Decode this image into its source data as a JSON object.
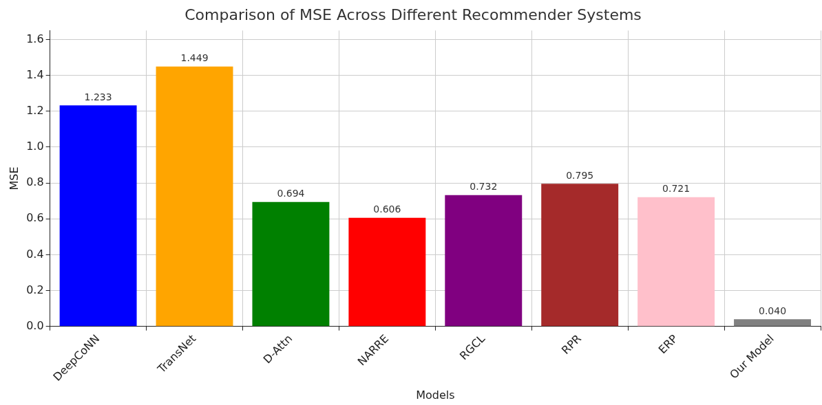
{
  "chart_data": {
    "type": "bar",
    "title": "Comparison of MSE Across Different Recommender Systems",
    "xlabel": "Models",
    "ylabel": "MSE",
    "categories": [
      "DeepCoNN",
      "TransNet",
      "D-Attn",
      "NARRE",
      "RGCL",
      "RPR",
      "ERP",
      "Our Model"
    ],
    "values": [
      1.233,
      1.449,
      0.694,
      0.606,
      0.732,
      0.795,
      0.721,
      0.04
    ],
    "value_labels": [
      "1.233",
      "1.449",
      "0.694",
      "0.606",
      "0.732",
      "0.795",
      "0.721",
      "0.040"
    ],
    "colors": [
      "#0000ff",
      "#ffa500",
      "#008000",
      "#ff0000",
      "#800080",
      "#a52a2a",
      "#ffc0cb",
      "#808080"
    ],
    "ylim": [
      0,
      1.65
    ],
    "yticks": [
      {
        "value": 0,
        "label": "0.0"
      },
      {
        "value": 0.2,
        "label": "0.2"
      },
      {
        "value": 0.4,
        "label": "0.4"
      },
      {
        "value": 0.6,
        "label": "0.6"
      },
      {
        "value": 0.8,
        "label": "0.8"
      },
      {
        "value": 1,
        "label": "1.0"
      },
      {
        "value": 1.2,
        "label": "1.2"
      },
      {
        "value": 1.4,
        "label": "1.4"
      },
      {
        "value": 1.6,
        "label": "1.6"
      }
    ],
    "grid": true,
    "legend": false
  }
}
